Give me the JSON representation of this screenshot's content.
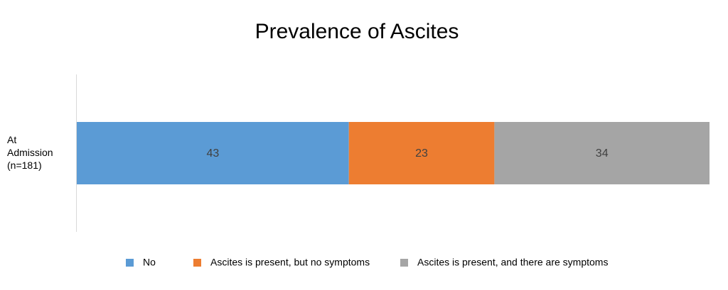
{
  "chart_data": {
    "type": "stacked-bar-horizontal",
    "title": "Prevalence of Ascites",
    "categories": [
      "At Admission (n=181)"
    ],
    "series": [
      {
        "name": "No",
        "color": "#5b9bd5",
        "values": [
          43
        ]
      },
      {
        "name": "Ascites is present, but no symptoms",
        "color": "#ed7d31",
        "values": [
          23
        ]
      },
      {
        "name": "Ascites is present, and there are symptoms",
        "color": "#a5a5a5",
        "values": [
          34
        ]
      }
    ],
    "xlim": [
      0,
      100
    ]
  }
}
